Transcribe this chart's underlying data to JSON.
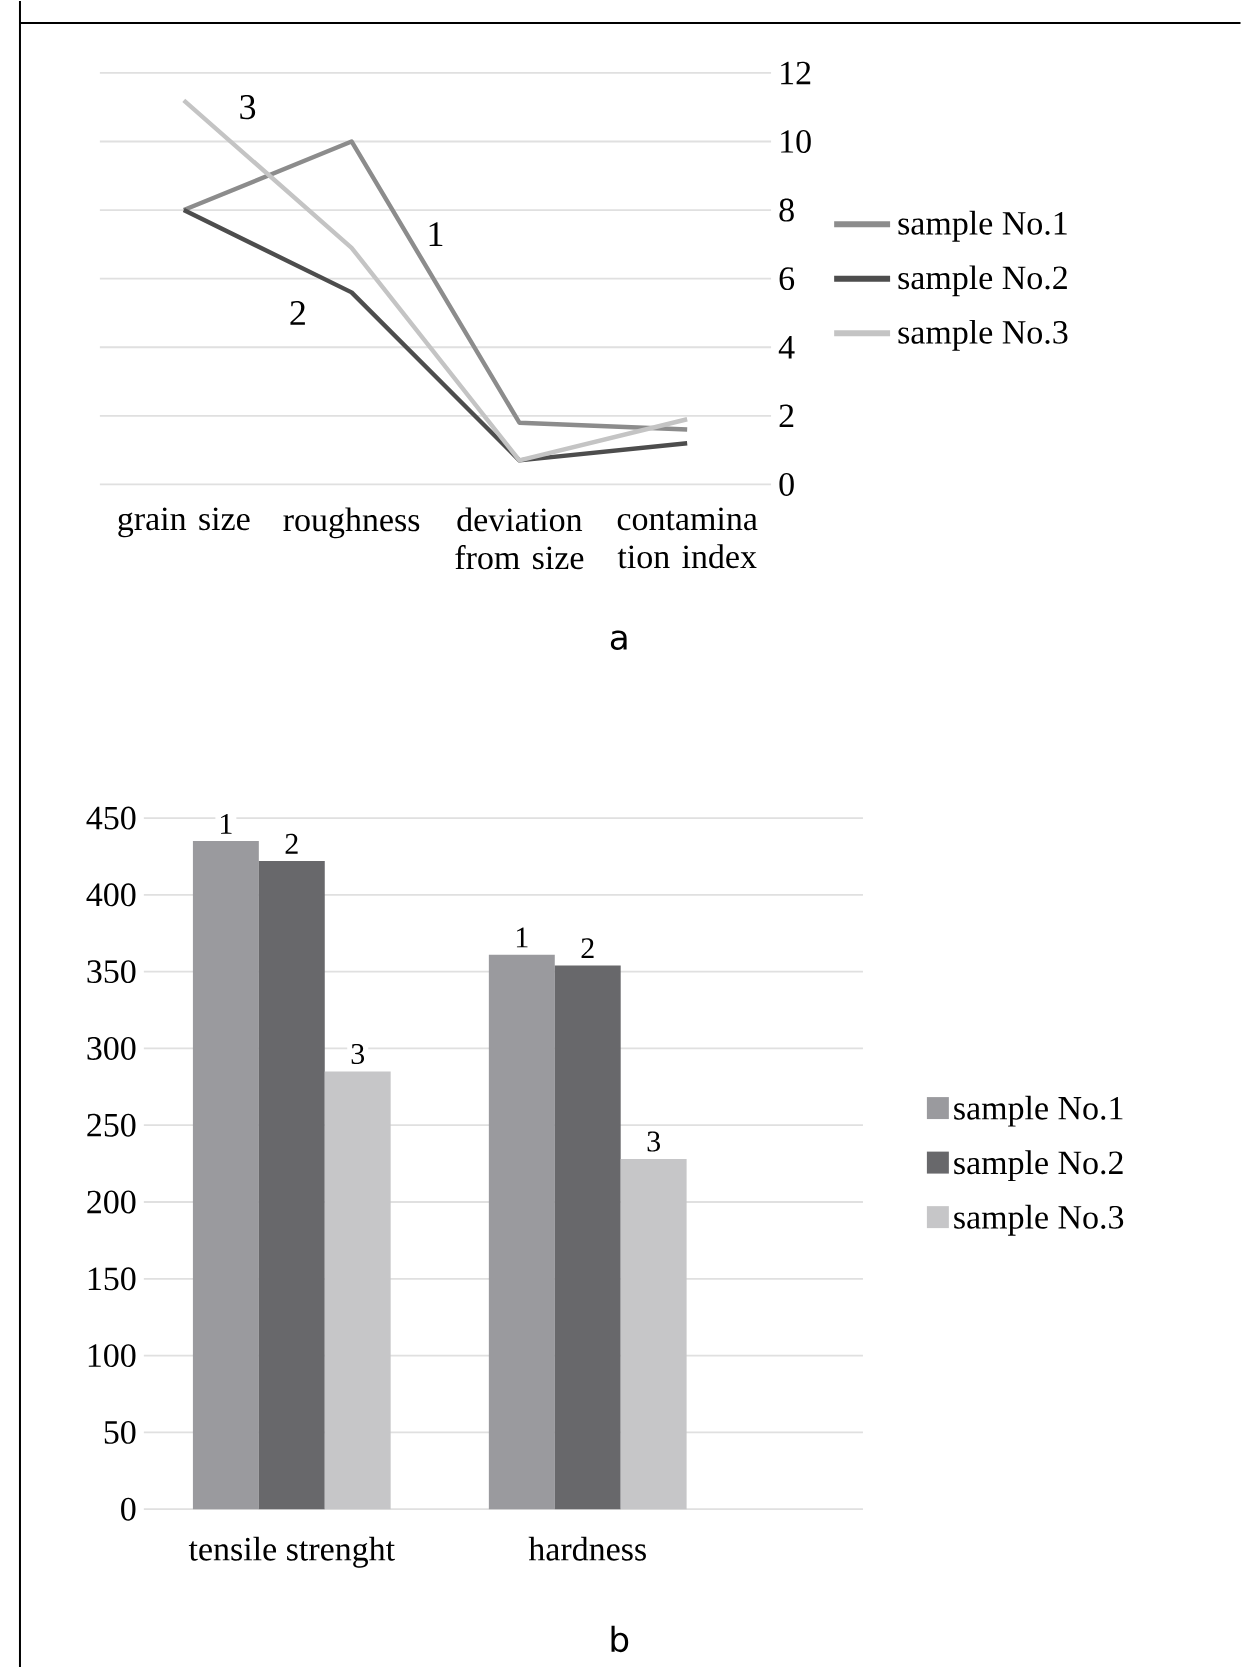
{
  "chart_data": [
    {
      "type": "line",
      "categories": [
        "grain size",
        "roughness",
        "deviation from size",
        "contamina tion index"
      ],
      "series": [
        {
          "name": "sample No.1",
          "color": "#8c8c8c",
          "values": [
            8,
            10,
            1.8,
            1.6
          ]
        },
        {
          "name": "sample No.2",
          "color": "#4d4d4d",
          "values": [
            8,
            5.6,
            0.7,
            1.2
          ]
        },
        {
          "name": "sample No.3",
          "color": "#c4c4c4",
          "values": [
            11.2,
            6.9,
            0.7,
            1.9
          ]
        }
      ],
      "ylim": [
        0,
        12
      ],
      "yticks": [
        0,
        2,
        4,
        6,
        8,
        10,
        12
      ],
      "grid": "y",
      "legend": "right",
      "marker": "none",
      "line_style": "solid",
      "annotations": [
        "3",
        "2",
        "1",
        "a"
      ]
    },
    {
      "type": "bar",
      "categories": [
        "tensile strenght",
        "hardness"
      ],
      "series": [
        {
          "name": "sample No.1",
          "color": "#9a9a9e",
          "values": [
            435,
            361
          ]
        },
        {
          "name": "sample No.2",
          "color": "#68686b",
          "values": [
            422,
            354
          ]
        },
        {
          "name": "sample No.3",
          "color": "#c6c6c8",
          "values": [
            285,
            228
          ]
        }
      ],
      "ylim": [
        0,
        450
      ],
      "yticks": [
        0,
        50,
        100,
        150,
        200,
        250,
        300,
        350,
        400,
        450
      ],
      "grid": "y",
      "legend": "right",
      "annotations": [
        "1",
        "2",
        "3",
        "1",
        "2",
        "3",
        "b"
      ]
    }
  ]
}
